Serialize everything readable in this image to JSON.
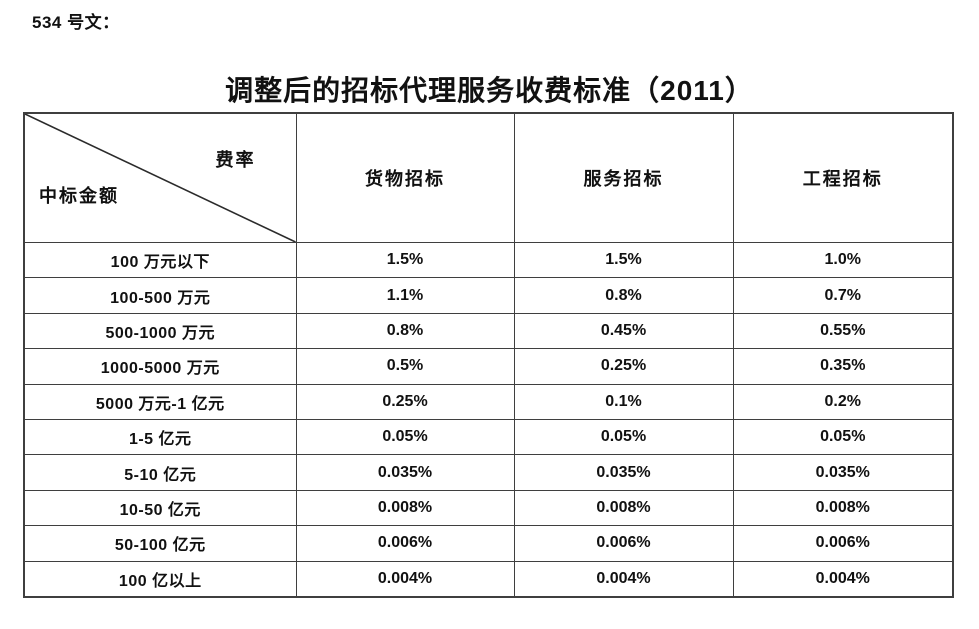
{
  "header": {
    "doc_label": "534 号文：",
    "title": "调整后的招标代理服务收费标准（2011）"
  },
  "table": {
    "corner": {
      "fee_rate_label": "费率",
      "bid_amount_label": "中标金额"
    },
    "columns": [
      "货物招标",
      "服务招标",
      "工程招标"
    ],
    "rows": [
      {
        "label": "100 万元以下",
        "values": [
          "1.5%",
          "1.5%",
          "1.0%"
        ]
      },
      {
        "label": "100-500 万元",
        "values": [
          "1.1%",
          "0.8%",
          "0.7%"
        ]
      },
      {
        "label": "500-1000 万元",
        "values": [
          "0.8%",
          "0.45%",
          "0.55%"
        ]
      },
      {
        "label": "1000-5000 万元",
        "values": [
          "0.5%",
          "0.25%",
          "0.35%"
        ]
      },
      {
        "label": "5000 万元-1 亿元",
        "values": [
          "0.25%",
          "0.1%",
          "0.2%"
        ]
      },
      {
        "label": "1-5 亿元",
        "values": [
          "0.05%",
          "0.05%",
          "0.05%"
        ]
      },
      {
        "label": "5-10 亿元",
        "values": [
          "0.035%",
          "0.035%",
          "0.035%"
        ]
      },
      {
        "label": "10-50 亿元",
        "values": [
          "0.008%",
          "0.008%",
          "0.008%"
        ]
      },
      {
        "label": "50-100 亿元",
        "values": [
          "0.006%",
          "0.006%",
          "0.006%"
        ]
      },
      {
        "label": "100 亿以上",
        "values": [
          "0.004%",
          "0.004%",
          "0.004%"
        ]
      }
    ]
  }
}
